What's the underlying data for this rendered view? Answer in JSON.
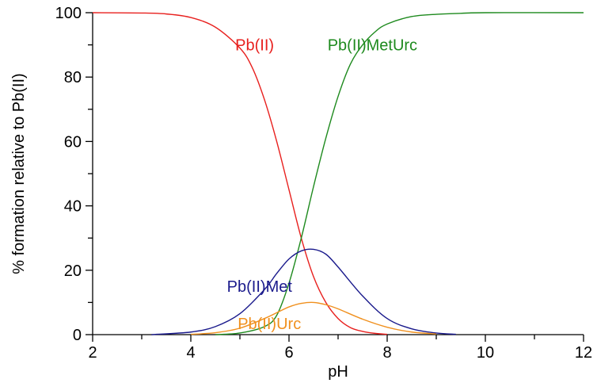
{
  "chart_data": {
    "type": "line",
    "title": "",
    "xlabel": "pH",
    "ylabel": "% formation relative to Pb(II)",
    "xlim": [
      2,
      12
    ],
    "ylim": [
      0,
      100
    ],
    "x_ticks": [
      2,
      4,
      6,
      8,
      10,
      12
    ],
    "y_ticks": [
      0,
      20,
      40,
      60,
      80,
      100
    ],
    "grid": false,
    "legend": "inline-labels",
    "series": [
      {
        "name": "Pb(II)",
        "color": "#e8201e",
        "label_anchor": [
          5.3,
          90
        ],
        "x": [
          2,
          3,
          3.5,
          4,
          4.5,
          5,
          5.25,
          5.5,
          5.75,
          6,
          6.25,
          6.5,
          6.75,
          7,
          7.25,
          7.5,
          7.75,
          8
        ],
        "y": [
          100,
          99.9,
          99.6,
          98.5,
          95.5,
          89,
          83,
          73,
          60,
          45,
          30,
          18,
          10,
          5,
          2.2,
          1,
          0.4,
          0.1
        ]
      },
      {
        "name": "Pb(II)MetUrc",
        "color": "#1e8a1e",
        "label_anchor": [
          7.7,
          90
        ],
        "x": [
          4.5,
          5,
          5.5,
          5.75,
          6,
          6.25,
          6.5,
          6.75,
          7,
          7.25,
          7.5,
          7.75,
          8,
          8.5,
          9,
          9.5,
          10,
          12
        ],
        "y": [
          0,
          0.5,
          2.5,
          6,
          16,
          30,
          46,
          61,
          74,
          84,
          90,
          94,
          96.5,
          98.8,
          99.5,
          99.8,
          100,
          100
        ]
      },
      {
        "name": "Pb(II)Met",
        "color": "#1a1a8c",
        "label_anchor": [
          5.4,
          15
        ],
        "x": [
          3.2,
          4,
          4.5,
          5,
          5.5,
          5.75,
          6,
          6.25,
          6.5,
          6.75,
          7,
          7.5,
          8,
          8.5,
          9,
          9.4
        ],
        "y": [
          0,
          0.8,
          2.5,
          6.5,
          14,
          19,
          23.5,
          26,
          26.5,
          25,
          21,
          12,
          5,
          1.8,
          0.5,
          0.1
        ]
      },
      {
        "name": "Pb(II)Urc",
        "color": "#f0901e",
        "label_anchor": [
          5.6,
          3.5
        ],
        "x": [
          4,
          4.5,
          5,
          5.5,
          5.75,
          6,
          6.25,
          6.5,
          6.75,
          7,
          7.5,
          8,
          8.5,
          9
        ],
        "y": [
          0.1,
          0.6,
          2,
          5,
          6.8,
          8.6,
          9.7,
          10,
          9.3,
          8,
          4.8,
          2.3,
          0.8,
          0.2
        ]
      }
    ]
  }
}
